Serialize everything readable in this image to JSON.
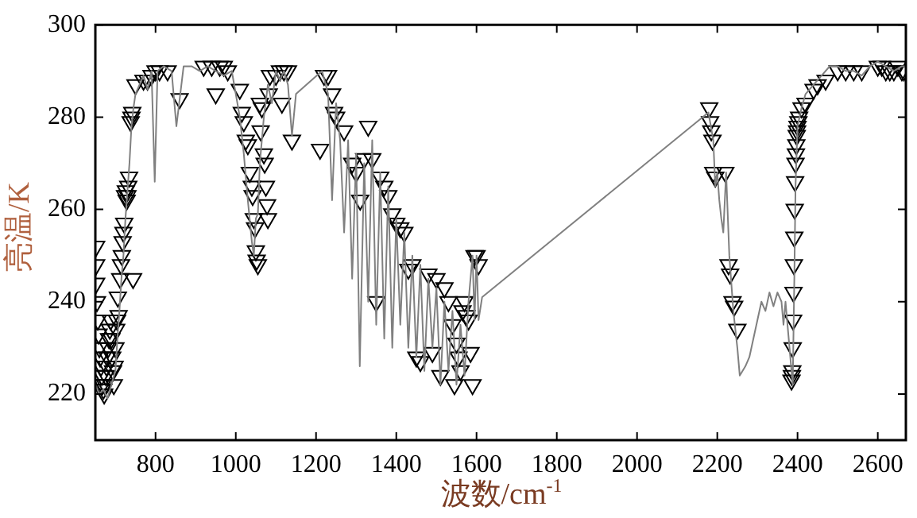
{
  "chart_data": {
    "type": "line",
    "xlabel": "波数/cm$^{-1}$",
    "ylabel": "亮温/K",
    "xlim": [
      650,
      2670
    ],
    "ylim": [
      210,
      300
    ],
    "xticks": [
      800,
      1000,
      1200,
      1400,
      1600,
      1800,
      2000,
      2200,
      2400,
      2600
    ],
    "yticks": [
      220,
      240,
      260,
      280,
      300
    ],
    "grid": false,
    "legend": false,
    "series": [
      {
        "type": "line",
        "color": "#808080",
        "marker": "none",
        "x": [
          650,
          660,
          670,
          680,
          690,
          700,
          705,
          710,
          715,
          720,
          725,
          730,
          735,
          740,
          745,
          750,
          760,
          770,
          780,
          790,
          798,
          805,
          820,
          840,
          852,
          870,
          890,
          910,
          930,
          950,
          970,
          990,
          1000,
          1010,
          1020,
          1030,
          1040,
          1045,
          1050,
          1055,
          1060,
          1070,
          1080,
          1090,
          1100,
          1110,
          1120,
          1130,
          1140,
          1150,
          1215,
          1230,
          1240,
          1250,
          1260,
          1270,
          1280,
          1290,
          1300,
          1309,
          1320,
          1330,
          1340,
          1350,
          1360,
          1370,
          1380,
          1390,
          1400,
          1410,
          1420,
          1430,
          1440,
          1450,
          1460,
          1470,
          1480,
          1490,
          1500,
          1510,
          1520,
          1530,
          1540,
          1550,
          1560,
          1570,
          1580,
          1590,
          1595,
          1600,
          1605,
          1614,
          2178,
          2190,
          2195,
          2200,
          2205,
          2210,
          2215,
          2222,
          2230,
          2240,
          2250,
          2256,
          2270,
          2280,
          2290,
          2300,
          2310,
          2320,
          2330,
          2340,
          2350,
          2360,
          2365,
          2370,
          2380,
          2388,
          2392,
          2395,
          2400,
          2410,
          2420,
          2440,
          2460,
          2480,
          2500,
          2520,
          2540,
          2560,
          2580,
          2600,
          2620,
          2640,
          2660,
          2670
        ],
        "values": [
          222,
          220,
          221,
          219,
          222,
          225,
          232,
          238,
          245,
          250,
          258,
          264,
          270,
          278,
          282,
          285,
          287,
          289,
          286,
          290,
          266,
          290,
          291,
          290,
          278,
          291,
          291,
          290,
          291,
          290,
          289,
          290,
          285,
          280,
          272,
          262,
          253,
          250,
          258,
          259,
          270,
          280,
          287,
          283,
          290,
          288,
          290,
          287,
          276,
          285,
          290,
          285,
          262,
          283,
          275,
          255,
          275,
          245,
          272,
          226,
          270,
          240,
          275,
          235,
          268,
          232,
          265,
          230,
          258,
          235,
          255,
          230,
          250,
          228,
          248,
          225,
          245,
          230,
          243,
          222,
          240,
          225,
          238,
          222,
          235,
          224,
          240,
          250,
          236,
          250,
          236,
          241,
          281,
          275,
          265,
          268,
          262,
          258,
          255,
          268,
          250,
          238,
          230,
          224,
          226,
          228,
          232,
          236,
          240,
          238,
          242,
          239,
          242,
          240,
          235,
          240,
          230,
          222,
          245,
          265,
          278,
          282,
          285,
          287,
          289,
          291,
          291,
          290,
          290,
          289,
          291,
          292,
          291,
          290,
          291,
          291
        ]
      },
      {
        "type": "scatter",
        "color": "#000000",
        "marker": "triangle",
        "x": [
          652,
          652,
          652,
          654,
          656,
          658,
          660,
          662,
          664,
          666,
          668,
          670,
          672,
          674,
          676,
          678,
          680,
          682,
          684,
          686,
          688,
          690,
          692,
          694,
          696,
          698,
          700,
          702,
          704,
          706,
          708,
          712,
          714,
          716,
          718,
          720,
          722,
          724,
          726,
          728,
          730,
          732,
          734,
          738,
          740,
          742,
          744,
          750,
          770,
          780,
          790,
          800,
          810,
          830,
          860,
          920,
          940,
          950,
          960,
          970,
          980,
          1010,
          1015,
          1020,
          1025,
          1030,
          1035,
          1040,
          1042,
          1045,
          1048,
          1050,
          1052,
          1055,
          1060,
          1062,
          1065,
          1070,
          1072,
          1075,
          1078,
          1080,
          1082,
          1085,
          1100,
          1110,
          1115,
          1120,
          1130,
          1140,
          1210,
          1220,
          1230,
          1240,
          1245,
          1250,
          1270,
          1290,
          1300,
          1310,
          1320,
          1330,
          1340,
          1350,
          1360,
          1370,
          1380,
          1390,
          1400,
          1410,
          1420,
          1430,
          1440,
          1450,
          1460,
          1480,
          1490,
          1500,
          1510,
          1520,
          1530,
          1540,
          1545,
          1550,
          1555,
          1560,
          1565,
          1570,
          1575,
          1580,
          1585,
          1590,
          1595,
          1600,
          1605,
          2180,
          2182,
          2185,
          2188,
          2190,
          2195,
          2220,
          2228,
          2232,
          2238,
          2242,
          2250,
          2385,
          2386,
          2387,
          2388,
          2389,
          2390,
          2391,
          2392,
          2393,
          2394,
          2395,
          2396,
          2397,
          2398,
          2399,
          2400,
          2402,
          2404,
          2410,
          2420,
          2440,
          2450,
          2470,
          2500,
          2520,
          2540,
          2560,
          2600,
          2610,
          2620,
          2630,
          2640,
          2650,
          2660,
          2665
        ],
        "values": [
          252,
          248,
          244,
          240,
          236,
          233,
          230,
          228,
          226,
          224,
          222,
          221,
          220,
          222,
          224,
          226,
          228,
          230,
          232,
          234,
          236,
          232,
          228,
          225,
          222,
          226,
          230,
          234,
          236,
          241,
          237,
          245,
          248,
          250,
          253,
          255,
          257,
          263,
          264,
          262,
          263,
          265,
          267,
          279,
          280,
          281,
          245,
          287,
          288,
          288,
          289,
          290,
          290,
          290,
          284,
          291,
          291,
          285,
          291,
          291,
          290,
          286,
          281,
          279,
          275,
          274,
          268,
          265,
          263,
          258,
          256,
          251,
          249,
          248,
          283,
          277,
          282,
          272,
          270,
          265,
          261,
          258,
          285,
          289,
          289,
          290,
          283,
          290,
          290,
          275,
          273,
          289,
          289,
          285,
          281,
          280,
          277,
          270,
          268,
          262,
          271,
          278,
          271,
          240,
          267,
          265,
          263,
          259,
          257,
          256,
          255,
          247,
          248,
          228,
          227,
          246,
          229,
          245,
          224,
          243,
          240,
          235,
          222,
          231,
          228,
          225,
          238,
          240,
          237,
          236,
          229,
          222,
          250,
          250,
          248,
          282,
          279,
          277,
          275,
          268,
          267,
          268,
          248,
          246,
          240,
          239,
          234,
          223,
          224,
          225,
          230,
          236,
          242,
          248,
          254,
          260,
          266,
          270,
          272,
          274,
          276,
          277,
          278,
          279,
          280,
          282,
          283,
          286,
          287,
          288,
          290,
          290,
          290,
          290,
          291,
          291,
          290,
          290,
          290,
          291,
          290,
          290
        ]
      }
    ]
  }
}
